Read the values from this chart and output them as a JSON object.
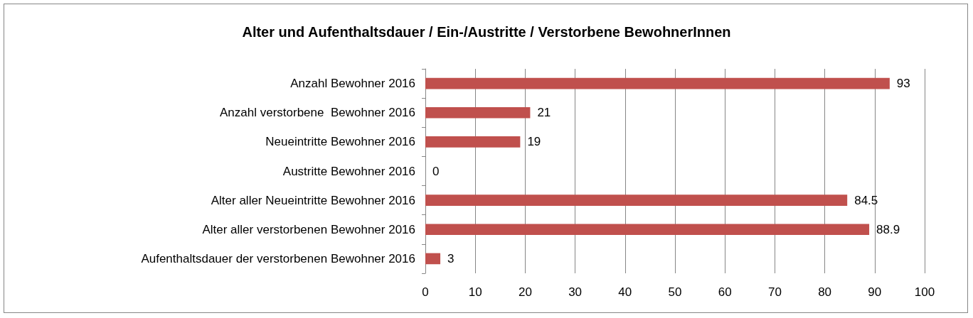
{
  "chart_data": {
    "type": "bar",
    "orientation": "horizontal",
    "title": "Alter und Aufenthaltsdauer / Ein-/Austritte / Verstorbene BewohnerInnen",
    "categories": [
      "Anzahl Bewohner 2016",
      "Anzahl verstorbene  Bewohner 2016",
      "Neueintritte Bewohner 2016",
      "Austritte Bewohner 2016",
      "Alter aller Neueintritte Bewohner 2016",
      "Alter aller verstorbenen Bewohner 2016",
      "Aufenthaltsdauer der verstorbenen Bewohner 2016"
    ],
    "values": [
      93,
      21,
      19,
      0,
      84.5,
      88.9,
      3
    ],
    "color": "#c0504d",
    "xlim": [
      0,
      100
    ],
    "xticks": [
      0,
      10,
      20,
      30,
      40,
      50,
      60,
      70,
      80,
      90,
      100
    ],
    "grid": "x",
    "data_labels": true
  }
}
